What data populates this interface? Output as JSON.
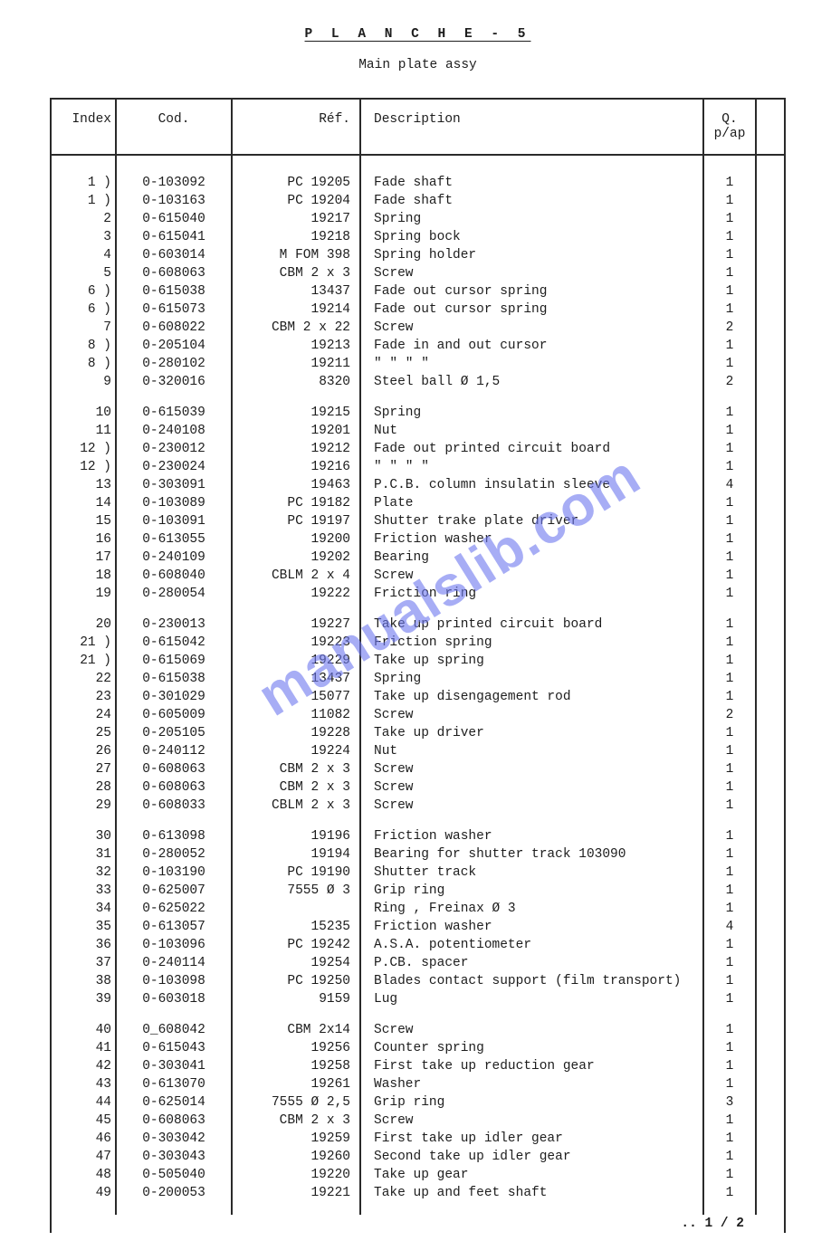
{
  "title": "P L A N C H E - 5",
  "subtitle": "Main plate assy",
  "watermark": "manualslib.com",
  "pager": ".. 1 / 2",
  "columns": {
    "index": "Index",
    "cod": "Cod.",
    "ref": "Réf.",
    "desc": "Description",
    "qty": "Q.\np/ap"
  },
  "groups": [
    [
      {
        "i": "1 )",
        "c": "0-103092",
        "r": "PC 19205",
        "d": "Fade shaft",
        "q": "1"
      },
      {
        "i": "1 )",
        "c": "0-103163",
        "r": "PC 19204",
        "d": "Fade shaft",
        "q": "1"
      },
      {
        "i": "2",
        "c": "0-615040",
        "r": "19217",
        "d": "Spring",
        "q": "1"
      },
      {
        "i": "3",
        "c": "0-615041",
        "r": "19218",
        "d": "Spring bock",
        "q": "1"
      },
      {
        "i": "4",
        "c": "0-603014",
        "r": "M FOM 398",
        "d": "Spring holder",
        "q": "1"
      },
      {
        "i": "5",
        "c": "0-608063",
        "r": "CBM 2 x 3",
        "d": "Screw",
        "q": "1"
      },
      {
        "i": "6 )",
        "c": "0-615038",
        "r": "13437",
        "d": "Fade out cursor spring",
        "q": "1"
      },
      {
        "i": "6 )",
        "c": "0-615073",
        "r": "19214",
        "d": "Fade out cursor spring",
        "q": "1"
      },
      {
        "i": "7",
        "c": "0-608022",
        "r": "CBM 2 x 22",
        "d": "Screw",
        "q": "2"
      },
      {
        "i": "8 )",
        "c": "0-205104",
        "r": "19213",
        "d": "Fade in and out cursor",
        "q": "1"
      },
      {
        "i": "8 )",
        "c": "0-280102",
        "r": "19211",
        "d": "\"     \"     \"     \"",
        "q": "1"
      },
      {
        "i": "9",
        "c": "0-320016",
        "r": "8320",
        "d": "Steel ball Ø 1,5",
        "q": "2"
      }
    ],
    [
      {
        "i": "10",
        "c": "0-615039",
        "r": "19215",
        "d": "Spring",
        "q": "1"
      },
      {
        "i": "11",
        "c": "0-240108",
        "r": "19201",
        "d": "Nut",
        "q": "1"
      },
      {
        "i": "12 )",
        "c": "0-230012",
        "r": "19212",
        "d": "Fade out printed circuit board",
        "q": "1"
      },
      {
        "i": "12 )",
        "c": "0-230024",
        "r": "19216",
        "d": "\"          \"         \"      \"",
        "q": "1"
      },
      {
        "i": "13",
        "c": "0-303091",
        "r": "19463",
        "d": "P.C.B. column insulatin sleeve",
        "q": "4"
      },
      {
        "i": "14",
        "c": "0-103089",
        "r": "PC 19182",
        "d": "Plate",
        "q": "1"
      },
      {
        "i": "15",
        "c": "0-103091",
        "r": "PC 19197",
        "d": "Shutter trake plate driver",
        "q": "1"
      },
      {
        "i": "16",
        "c": "0-613055",
        "r": "19200",
        "d": "Friction washer",
        "q": "1"
      },
      {
        "i": "17",
        "c": "0-240109",
        "r": "19202",
        "d": "Bearing",
        "q": "1"
      },
      {
        "i": "18",
        "c": "0-608040",
        "r": "CBLM 2 x 4",
        "d": "Screw",
        "q": "1"
      },
      {
        "i": "19",
        "c": "0-280054",
        "r": "19222",
        "d": "Friction ring",
        "q": "1"
      }
    ],
    [
      {
        "i": "20",
        "c": "0-230013",
        "r": "19227",
        "d": "Take up printed circuit board",
        "q": "1"
      },
      {
        "i": "21 )",
        "c": "0-615042",
        "r": "19223",
        "d": "Friction spring",
        "q": "1"
      },
      {
        "i": "21 )",
        "c": "0-615069",
        "r": "19229",
        "d": "Take up spring",
        "q": "1"
      },
      {
        "i": "22",
        "c": "0-615038",
        "r": "13437",
        "d": "Spring",
        "q": "1"
      },
      {
        "i": "23",
        "c": "0-301029",
        "r": "15077",
        "d": "Take up disengagement rod",
        "q": "1"
      },
      {
        "i": "24",
        "c": "0-605009",
        "r": "11082",
        "d": "Screw",
        "q": "2"
      },
      {
        "i": "25",
        "c": "0-205105",
        "r": "19228",
        "d": "Take up driver",
        "q": "1"
      },
      {
        "i": "26",
        "c": "0-240112",
        "r": "19224",
        "d": "Nut",
        "q": "1"
      },
      {
        "i": "27",
        "c": "0-608063",
        "r": "CBM 2 x 3",
        "d": "Screw",
        "q": "1"
      },
      {
        "i": "28",
        "c": "0-608063",
        "r": "CBM 2 x 3",
        "d": "Screw",
        "q": "1"
      },
      {
        "i": "29",
        "c": "0-608033",
        "r": "CBLM 2 x 3",
        "d": "Screw",
        "q": "1"
      }
    ],
    [
      {
        "i": "30",
        "c": "0-613098",
        "r": "19196",
        "d": "Friction washer",
        "q": "1"
      },
      {
        "i": "31",
        "c": "0-280052",
        "r": "19194",
        "d": "Bearing for shutter track 103090",
        "q": "1"
      },
      {
        "i": "32",
        "c": "0-103190",
        "r": "PC 19190",
        "d": "Shutter track",
        "q": "1"
      },
      {
        "i": "33",
        "c": "0-625007",
        "r": "7555 Ø 3",
        "d": "Grip ring",
        "q": "1"
      },
      {
        "i": "34",
        "c": "0-625022",
        "r": "",
        "d": "Ring , Freinax Ø 3",
        "q": "1"
      },
      {
        "i": "35",
        "c": "0-613057",
        "r": "15235",
        "d": "Friction washer",
        "q": "4"
      },
      {
        "i": "36",
        "c": "0-103096",
        "r": "PC 19242",
        "d": "A.S.A. potentiometer",
        "q": "1"
      },
      {
        "i": "37",
        "c": "0-240114",
        "r": "19254",
        "d": "P.CB. spacer",
        "q": "1"
      },
      {
        "i": "38",
        "c": "0-103098",
        "r": "PC 19250",
        "d": "Blades contact support (film transport)",
        "q": "1"
      },
      {
        "i": "39",
        "c": "0-603018",
        "r": "9159",
        "d": "Lug",
        "q": "1"
      }
    ],
    [
      {
        "i": "40",
        "c": "0_608042",
        "r": "CBM 2x14",
        "d": "Screw",
        "q": "1"
      },
      {
        "i": "41",
        "c": "0-615043",
        "r": "19256",
        "d": "Counter spring",
        "q": "1"
      },
      {
        "i": "42",
        "c": "0-303041",
        "r": "19258",
        "d": "First take up reduction gear",
        "q": "1"
      },
      {
        "i": "43",
        "c": "0-613070",
        "r": "19261",
        "d": "Washer",
        "q": "1"
      },
      {
        "i": "44",
        "c": "0-625014",
        "r": "7555 Ø 2,5",
        "d": "Grip ring",
        "q": "3"
      },
      {
        "i": "45",
        "c": "0-608063",
        "r": "CBM 2 x 3",
        "d": "Screw",
        "q": "1"
      },
      {
        "i": "46",
        "c": "0-303042",
        "r": "19259",
        "d": "First take up idler gear",
        "q": "1"
      },
      {
        "i": "47",
        "c": "0-303043",
        "r": "19260",
        "d": "Second take up idler gear",
        "q": "1"
      },
      {
        "i": "48",
        "c": "0-505040",
        "r": "19220",
        "d": "Take up gear",
        "q": "1"
      },
      {
        "i": "49",
        "c": "0-200053",
        "r": "19221",
        "d": "Take up and feet shaft",
        "q": "1"
      }
    ]
  ]
}
